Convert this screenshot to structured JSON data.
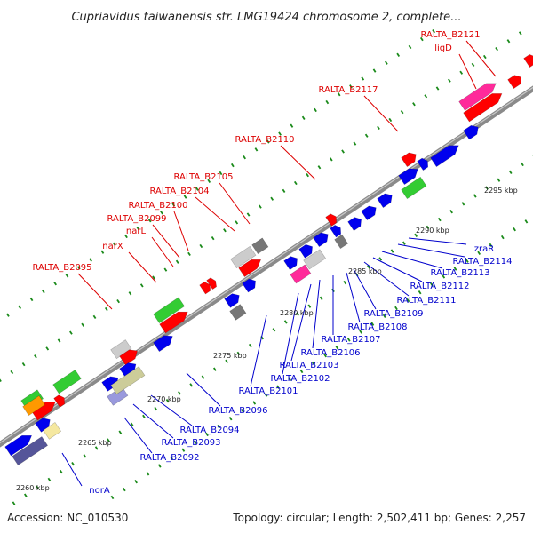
{
  "title": "Cupriavidus taiwanensis str. LMG19424 chromosome 2, complete...",
  "footer": {
    "accession": "Accession: NC_010530",
    "topology": "Topology: circular; Length: 2,502,411 bp; Genes: 2,257"
  },
  "colors": {
    "backbone": "#8a8a8a",
    "upper_label": "#dd0000",
    "lower_label": "#0000cc",
    "leader_upper": "#dd0000",
    "leader_lower": "#0000cc",
    "dots": "#1a8a1a"
  },
  "ticks": [
    "2260 kbp",
    "2265 kbp",
    "2270 kbp",
    "2275 kbp",
    "2280 kbp",
    "2285 kbp",
    "2290 kbp",
    "2295 kbp"
  ],
  "upper_labels": [
    "RALTA_B2121",
    "ligD",
    "RALTA_B2117",
    "RALTA_B2110",
    "RALTA_B2105",
    "RALTA_B2104",
    "RALTA_B2100",
    "RALTA_B2099",
    "narL",
    "narX",
    "RALTA_B2095"
  ],
  "lower_labels": [
    "zraR",
    "RALTA_B2114",
    "RALTA_B2113",
    "RALTA_B2112",
    "RALTA_B2111",
    "RALTA_B2109",
    "RALTA_B2108",
    "RALTA_B2107",
    "RALTA_B2106",
    "RALTA_B2103",
    "RALTA_B2102",
    "RALTA_B2101",
    "RALTA_B2096",
    "RALTA_B2094",
    "RALTA_B2093",
    "RALTA_B2092",
    "norA"
  ]
}
